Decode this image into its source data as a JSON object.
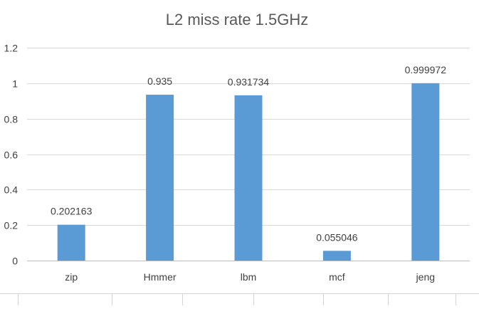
{
  "chart_data": {
    "type": "bar",
    "title": "L2 miss rate 1.5GHz",
    "xlabel": "",
    "ylabel": "",
    "categories": [
      "zip",
      "Hmmer",
      "lbm",
      "mcf",
      "jeng"
    ],
    "series": [
      {
        "values": [
          0.202163,
          0.935,
          0.931734,
          0.055046,
          0.999972
        ],
        "data_labels": [
          "0.202163",
          "0.935",
          "0.931734",
          "0.055046",
          "0.999972"
        ]
      }
    ],
    "ylim": [
      0,
      1.2
    ],
    "yticks": [
      0,
      0.2,
      0.4,
      0.6,
      0.8,
      1,
      1.2
    ],
    "ytick_labels": [
      "0",
      "0.2",
      "0.4",
      "0.6",
      "0.8",
      "1",
      "1.2"
    ],
    "grid": true,
    "legend": "none",
    "colors": {
      "bar": "#5b9bd5",
      "grid": "#d9d9d9",
      "axis": "#bfbfbf",
      "text": "#404040",
      "title": "#595959"
    }
  }
}
